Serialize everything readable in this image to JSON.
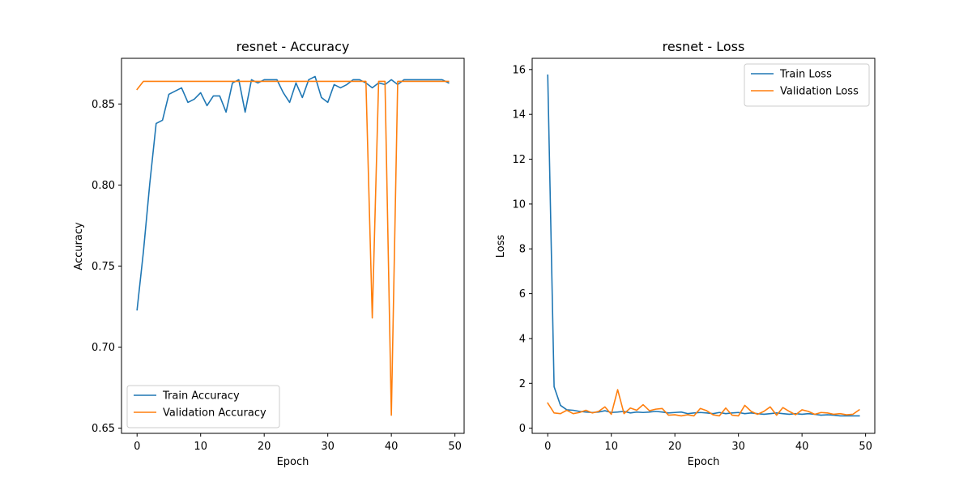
{
  "chart_data": [
    {
      "type": "line",
      "title": "resnet - Accuracy",
      "xlabel": "Epoch",
      "ylabel": "Accuracy",
      "xlim": [
        -2.45,
        51.45
      ],
      "ylim": [
        0.6468,
        0.8782
      ],
      "xticks": [
        0,
        10,
        20,
        30,
        40,
        50
      ],
      "yticks": [
        0.65,
        0.7,
        0.75,
        0.8,
        0.85
      ],
      "ytick_labels": [
        "0.65",
        "0.70",
        "0.75",
        "0.80",
        "0.85"
      ],
      "legend_position": "lower-left",
      "grid": false,
      "series": [
        {
          "name": "Train Accuracy",
          "color": "#1f77b4",
          "values": [
            0.723,
            0.759,
            0.801,
            0.838,
            0.84,
            0.856,
            0.858,
            0.86,
            0.851,
            0.853,
            0.857,
            0.849,
            0.855,
            0.855,
            0.845,
            0.863,
            0.865,
            0.845,
            0.865,
            0.863,
            0.865,
            0.865,
            0.865,
            0.857,
            0.851,
            0.863,
            0.854,
            0.865,
            0.867,
            0.854,
            0.851,
            0.862,
            0.86,
            0.862,
            0.865,
            0.865,
            0.863,
            0.86,
            0.863,
            0.862,
            0.865,
            0.862,
            0.865,
            0.865,
            0.865,
            0.865,
            0.865,
            0.865,
            0.865,
            0.863
          ]
        },
        {
          "name": "Validation Accuracy",
          "color": "#ff7f0e",
          "values": [
            0.859,
            0.864,
            0.864,
            0.864,
            0.864,
            0.864,
            0.864,
            0.864,
            0.864,
            0.864,
            0.864,
            0.864,
            0.864,
            0.864,
            0.864,
            0.864,
            0.864,
            0.864,
            0.864,
            0.864,
            0.864,
            0.864,
            0.864,
            0.864,
            0.864,
            0.864,
            0.864,
            0.864,
            0.864,
            0.864,
            0.864,
            0.864,
            0.864,
            0.864,
            0.864,
            0.864,
            0.864,
            0.718,
            0.864,
            0.864,
            0.658,
            0.864,
            0.864,
            0.864,
            0.864,
            0.864,
            0.864,
            0.864,
            0.864,
            0.864
          ]
        }
      ]
    },
    {
      "type": "line",
      "title": "resnet - Loss",
      "xlabel": "Epoch",
      "ylabel": "Loss",
      "xlim": [
        -2.45,
        51.45
      ],
      "ylim": [
        -0.23,
        16.5
      ],
      "xticks": [
        0,
        10,
        20,
        30,
        40,
        50
      ],
      "yticks": [
        0,
        2,
        4,
        6,
        8,
        10,
        12,
        14,
        16
      ],
      "ytick_labels": [
        "0",
        "2",
        "4",
        "6",
        "8",
        "10",
        "12",
        "14",
        "16"
      ],
      "legend_position": "upper-right",
      "grid": false,
      "series": [
        {
          "name": "Train Loss",
          "color": "#1f77b4",
          "values": [
            15.75,
            1.85,
            1.02,
            0.82,
            0.8,
            0.75,
            0.72,
            0.7,
            0.72,
            0.78,
            0.7,
            0.72,
            0.75,
            0.68,
            0.72,
            0.7,
            0.72,
            0.75,
            0.72,
            0.68,
            0.7,
            0.72,
            0.65,
            0.68,
            0.7,
            0.68,
            0.65,
            0.7,
            0.65,
            0.68,
            0.7,
            0.65,
            0.68,
            0.65,
            0.62,
            0.65,
            0.68,
            0.65,
            0.62,
            0.65,
            0.62,
            0.65,
            0.62,
            0.58,
            0.6,
            0.58,
            0.55,
            0.55,
            0.55,
            0.55
          ]
        },
        {
          "name": "Validation Loss",
          "color": "#ff7f0e",
          "values": [
            1.12,
            0.68,
            0.65,
            0.8,
            0.65,
            0.7,
            0.8,
            0.68,
            0.75,
            0.95,
            0.62,
            1.72,
            0.65,
            0.9,
            0.8,
            1.05,
            0.78,
            0.85,
            0.88,
            0.58,
            0.6,
            0.55,
            0.6,
            0.55,
            0.88,
            0.78,
            0.6,
            0.55,
            0.9,
            0.58,
            0.55,
            1.02,
            0.75,
            0.62,
            0.75,
            0.95,
            0.58,
            0.92,
            0.75,
            0.6,
            0.82,
            0.75,
            0.62,
            0.7,
            0.68,
            0.62,
            0.65,
            0.6,
            0.62,
            0.82
          ]
        }
      ]
    }
  ]
}
